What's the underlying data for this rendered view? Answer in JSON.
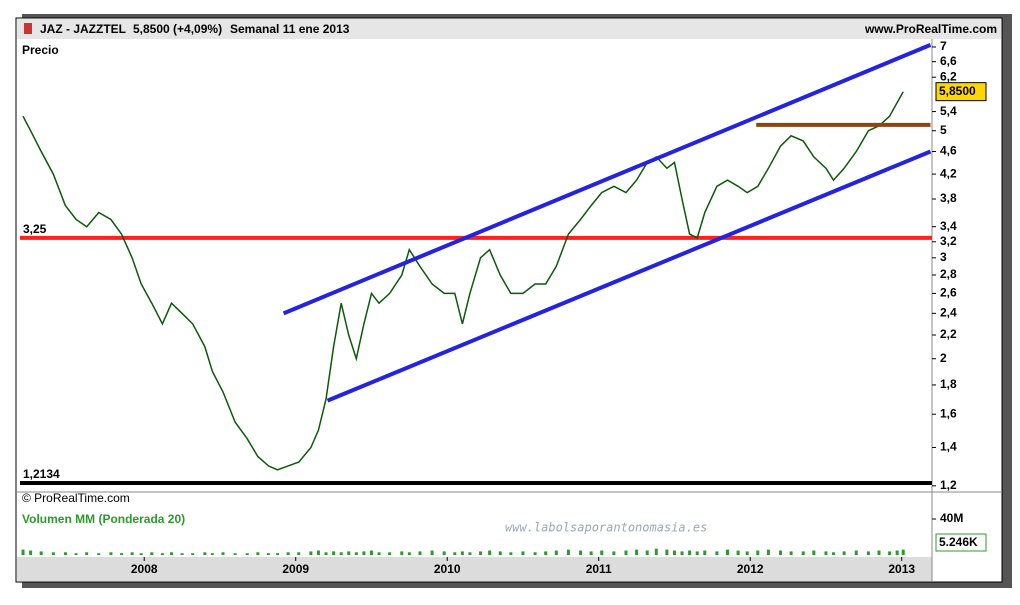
{
  "chart_data": {
    "type": "line",
    "symbol": "JAZ - JAZZTEL",
    "quote": "5,8500 (+4,09%)",
    "period": "Semanal  11 ene 2013",
    "source": "www.ProRealTime.com",
    "panel_title": "Precio",
    "copyright": "© ProRealTime.com",
    "volume_title": "Volumen MM (Ponderada 20)",
    "watermark": "www.labolsaporantonomasia.es",
    "log_scale": true,
    "grid": false,
    "x": [
      2007.2,
      2007.25,
      2007.32,
      2007.4,
      2007.48,
      2007.55,
      2007.62,
      2007.7,
      2007.78,
      2007.85,
      2007.92,
      2007.98,
      2008.05,
      2008.12,
      2008.18,
      2008.25,
      2008.32,
      2008.4,
      2008.45,
      2008.52,
      2008.6,
      2008.68,
      2008.75,
      2008.82,
      2008.88,
      2008.95,
      2009.02,
      2009.1,
      2009.15,
      2009.2,
      2009.25,
      2009.3,
      2009.35,
      2009.4,
      2009.45,
      2009.5,
      2009.55,
      2009.62,
      2009.7,
      2009.75,
      2009.82,
      2009.9,
      2009.98,
      2010.05,
      2010.1,
      2010.15,
      2010.22,
      2010.28,
      2010.35,
      2010.42,
      2010.5,
      2010.58,
      2010.65,
      2010.72,
      2010.8,
      2010.88,
      2010.95,
      2011.02,
      2011.1,
      2011.18,
      2011.25,
      2011.32,
      2011.38,
      2011.45,
      2011.5,
      2011.55,
      2011.6,
      2011.65,
      2011.7,
      2011.78,
      2011.85,
      2011.92,
      2011.98,
      2012.05,
      2012.12,
      2012.2,
      2012.27,
      2012.35,
      2012.42,
      2012.5,
      2012.55,
      2012.62,
      2012.7,
      2012.78,
      2012.85,
      2012.92,
      2012.97,
      2013.01
    ],
    "series": [
      {
        "color": "#0a5a0a",
        "values": [
          5.3,
          5.0,
          4.6,
          4.2,
          3.7,
          3.5,
          3.4,
          3.6,
          3.5,
          3.3,
          3.0,
          2.7,
          2.5,
          2.3,
          2.5,
          2.4,
          2.3,
          2.1,
          1.9,
          1.75,
          1.55,
          1.45,
          1.35,
          1.3,
          1.28,
          1.3,
          1.32,
          1.4,
          1.5,
          1.7,
          2.1,
          2.5,
          2.2,
          2.0,
          2.3,
          2.6,
          2.5,
          2.6,
          2.8,
          3.1,
          2.9,
          2.7,
          2.6,
          2.6,
          2.3,
          2.6,
          3.0,
          3.1,
          2.8,
          2.6,
          2.6,
          2.7,
          2.7,
          2.9,
          3.3,
          3.5,
          3.7,
          3.9,
          4.0,
          3.9,
          4.1,
          4.4,
          4.5,
          4.3,
          4.4,
          3.8,
          3.3,
          3.25,
          3.6,
          4.0,
          4.1,
          4.0,
          3.9,
          4.0,
          4.3,
          4.7,
          4.9,
          4.8,
          4.5,
          4.3,
          4.1,
          4.3,
          4.6,
          5.0,
          5.1,
          5.3,
          5.6,
          5.85
        ]
      }
    ],
    "volume": {
      "color": "#2e9a2e",
      "values": [
        6,
        5,
        4,
        3,
        3,
        2,
        3,
        2,
        3,
        2,
        3,
        2,
        3,
        2,
        3,
        2,
        2,
        3,
        2,
        3,
        2,
        2,
        3,
        2,
        2,
        3,
        3,
        4,
        5,
        3,
        4,
        3,
        4,
        3,
        4,
        5,
        3,
        3,
        4,
        3,
        4,
        5,
        4,
        3,
        4,
        3,
        4,
        5,
        4,
        3,
        4,
        3,
        4,
        5,
        6,
        5,
        4,
        5,
        4,
        5,
        6,
        5,
        7,
        6,
        5,
        4,
        5,
        4,
        5,
        4,
        6,
        5,
        4,
        5,
        6,
        5,
        4,
        4,
        5,
        4,
        3,
        4,
        5,
        4,
        5,
        4,
        5,
        6
      ],
      "ylim": [
        0,
        40
      ],
      "yticks": [
        {
          "value": 40,
          "label": "40M"
        }
      ],
      "last_label": "5.246K"
    },
    "xlim": [
      2007.18,
      2013.2
    ],
    "xticks": [
      2008,
      2009,
      2010,
      2011,
      2012,
      2013
    ],
    "ylim": [
      1.18,
      7.2
    ],
    "yticks": [
      {
        "value": 1.2,
        "label": "1,2"
      },
      {
        "value": 1.4,
        "label": "1,4"
      },
      {
        "value": 1.6,
        "label": "1,6"
      },
      {
        "value": 1.8,
        "label": "1,8"
      },
      2,
      {
        "value": 2.2,
        "label": "2,2"
      },
      {
        "value": 2.4,
        "label": "2,4"
      },
      {
        "value": 2.6,
        "label": "2,6"
      },
      {
        "value": 2.8,
        "label": "2,8"
      },
      3,
      {
        "value": 3.2,
        "label": "3,2"
      },
      {
        "value": 3.4,
        "label": "3,4"
      },
      {
        "value": 3.8,
        "label": "3,8"
      },
      {
        "value": 4.2,
        "label": "4,2"
      },
      {
        "value": 4.6,
        "label": "4,6"
      },
      5,
      {
        "value": 5.4,
        "label": "5,4"
      },
      {
        "value": 6.2,
        "label": "6,2"
      },
      {
        "value": 6.6,
        "label": "6,6"
      },
      7
    ],
    "levels": [
      {
        "value": 3.25,
        "label": "3,25",
        "color": "#ff2020"
      },
      {
        "value": 1.2134,
        "label": "1,2134",
        "color": "#000000"
      }
    ],
    "trend_lines": [
      {
        "color": "#2323e0",
        "points": [
          [
            2008.92,
            2.4
          ],
          [
            2013.19,
            7.06
          ]
        ]
      },
      {
        "color": "#2323e0",
        "points": [
          [
            2009.21,
            1.69
          ],
          [
            2013.19,
            4.6
          ]
        ]
      },
      {
        "color": "#8b4513",
        "points": [
          [
            2012.04,
            5.12
          ],
          [
            2013.19,
            5.12
          ]
        ]
      }
    ],
    "last_price": {
      "value": 5.85,
      "label": "5,8500"
    }
  }
}
